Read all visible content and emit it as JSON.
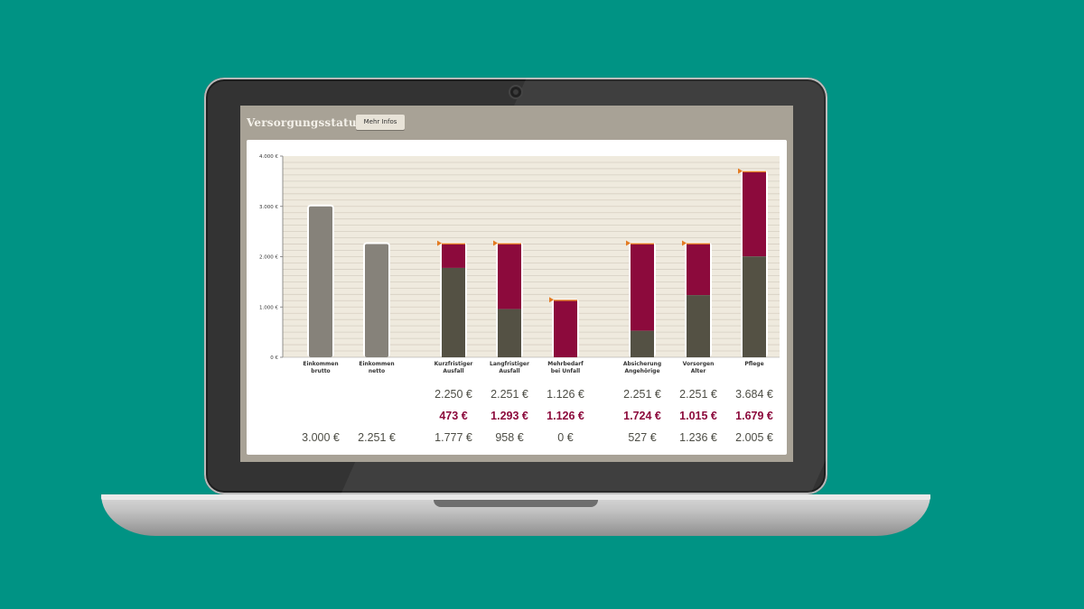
{
  "app": {
    "title": "Versorgungsstatus",
    "info_button_label": "Mehr Infos"
  },
  "colors": {
    "background": "#009384",
    "provided": "#545144",
    "gap": "#8c0a3c",
    "income": "#86827a",
    "target_marker": "#e37b22",
    "chart_bg": "#efeade"
  },
  "chart_data": {
    "type": "bar",
    "stacked": true,
    "y_tick_labels": [
      "4.000 €",
      "3.000 €",
      "2.000 €",
      "1.000 €",
      "0 €"
    ],
    "ylim": [
      0,
      4000
    ],
    "categories": [
      {
        "line1": "Einkommen",
        "line2": "brutto"
      },
      {
        "line1": "Einkommen",
        "line2": "netto"
      },
      {
        "line1": "Kurzfristiger",
        "line2": "Ausfall"
      },
      {
        "line1": "Langfristiger",
        "line2": "Ausfall"
      },
      {
        "line1": "Mehrbedarf",
        "line2": "bei Unfall"
      },
      {
        "line1": "Absicherung",
        "line2": "Angehörige"
      },
      {
        "line1": "Vorsorgen",
        "line2": "Alter"
      },
      {
        "line1": "Pflege",
        "line2": ""
      }
    ],
    "provided": [
      3000,
      2251,
      1777,
      958,
      0,
      527,
      1236,
      2005
    ],
    "gap": [
      0,
      0,
      473,
      1293,
      1126,
      1724,
      1015,
      1679
    ],
    "target": [
      null,
      null,
      2250,
      2251,
      1126,
      2251,
      2251,
      3684
    ],
    "is_income": [
      true,
      true,
      false,
      false,
      false,
      false,
      false,
      false
    ],
    "value_rows": {
      "target": [
        "",
        "",
        "2.250 €",
        "2.251 €",
        "1.126 €",
        "2.251 €",
        "2.251 €",
        "3.684 €"
      ],
      "gap": [
        "",
        "",
        "473 €",
        "1.293 €",
        "1.126 €",
        "1.724 €",
        "1.015 €",
        "1.679 €"
      ],
      "provided": [
        "3.000 €",
        "2.251 €",
        "1.777 €",
        "958 €",
        "0 €",
        "527 €",
        "1.236 €",
        "2.005 €"
      ]
    }
  }
}
